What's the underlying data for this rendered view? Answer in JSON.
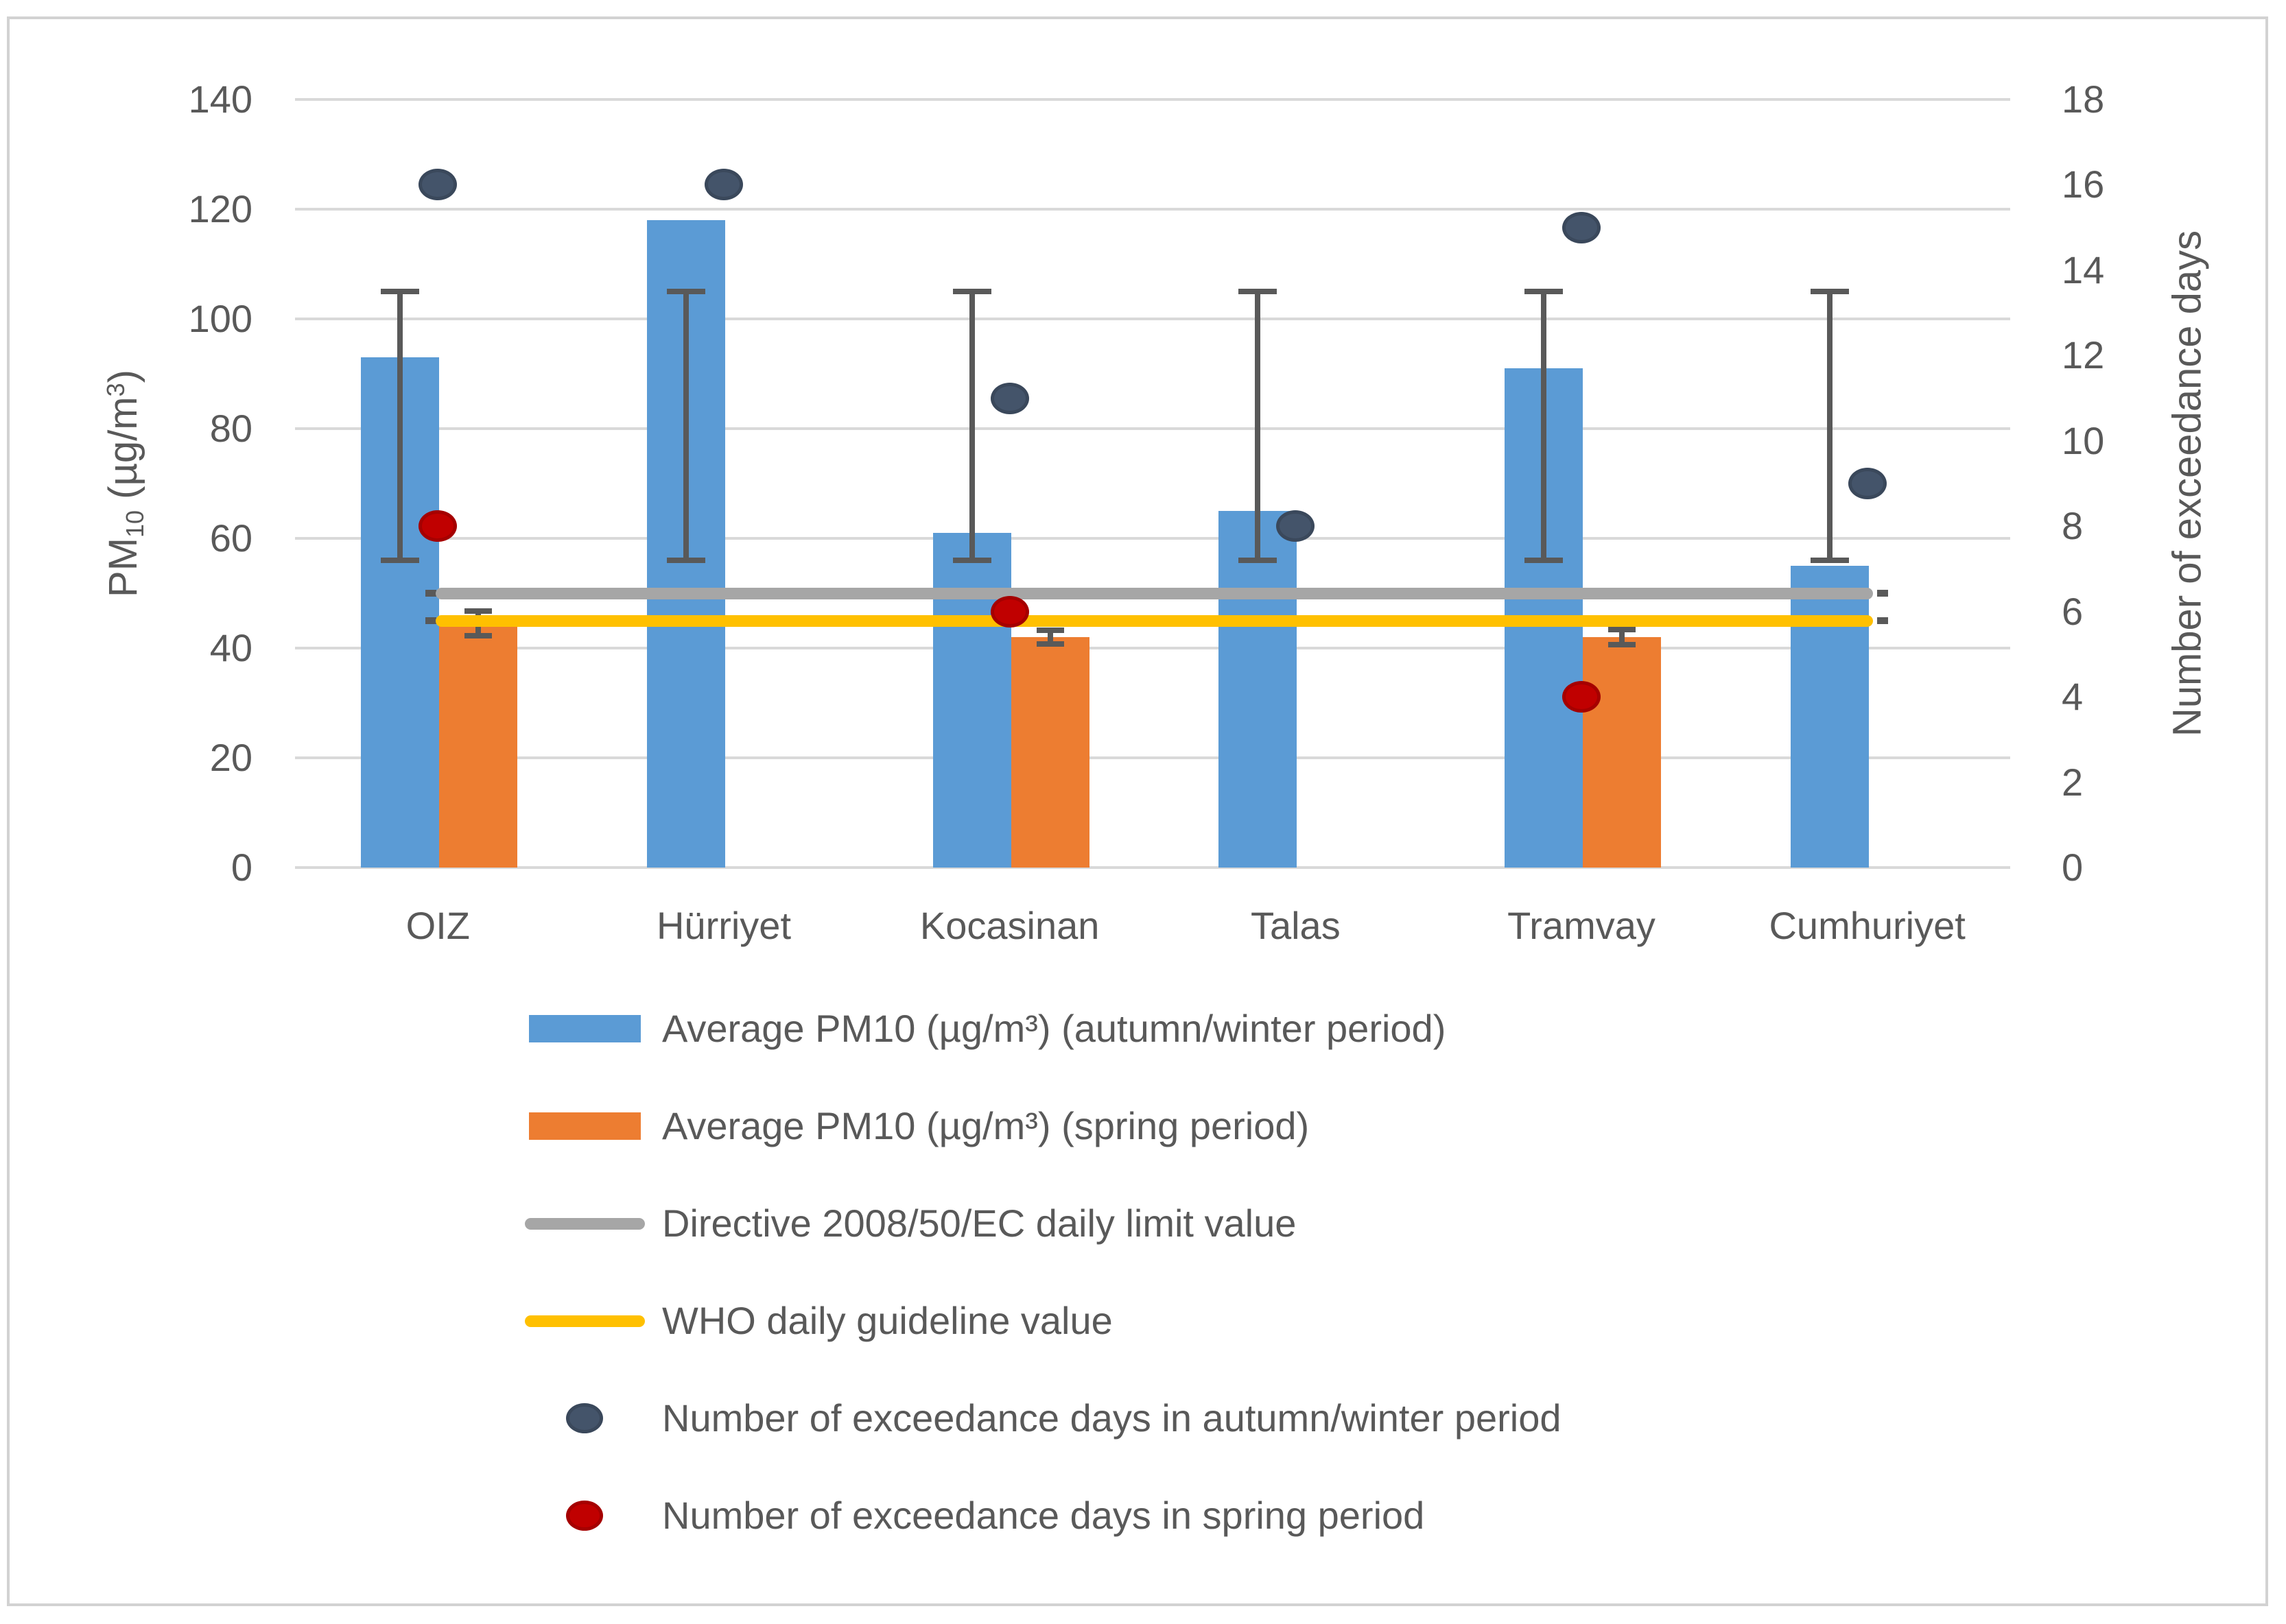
{
  "figure": {
    "background": "#FFFFFF",
    "border_color": "#D2D2D2",
    "text_color": "#595959",
    "gridline_color": "#D9D9D9",
    "error_bar_color": "#595959"
  },
  "chart_data": {
    "type": "combo",
    "subtypes": [
      "bar",
      "line",
      "scatter"
    ],
    "categories": [
      "OIZ",
      "Hürriyet",
      "Kocasinan",
      "Talas",
      "Tramvay",
      "Cumhuriyet"
    ],
    "left_axis": {
      "title": "PM10 (µg/m³)",
      "title_parts": {
        "prefix": "PM",
        "sub": "10",
        "mid": " (µg/m",
        "sup": "3",
        "suffix": ")"
      },
      "min": 0,
      "max": 140,
      "step": 20,
      "ticks": [
        "0",
        "20",
        "40",
        "60",
        "80",
        "100",
        "120",
        "140"
      ]
    },
    "right_axis": {
      "title": "Number of exceedance days",
      "min": 0,
      "max": 18,
      "step": 2,
      "ticks": [
        "0",
        "2",
        "4",
        "6",
        "8",
        "10",
        "12",
        "14",
        "16",
        "18"
      ]
    },
    "grid": true,
    "legend_position": "bottom",
    "series": [
      {
        "id": "pm10_autumn_winter",
        "name": "Average PM10 (µg/m³) (autumn/winter period)",
        "type": "bar",
        "axis": "left",
        "color": "#5B9BD5",
        "values": [
          93,
          118,
          61,
          65,
          91,
          55
        ],
        "error_bars": [
          {
            "low": 56,
            "high": 105
          },
          {
            "low": 56,
            "high": 105
          },
          {
            "low": 56,
            "high": 105
          },
          {
            "low": 56,
            "high": 105
          },
          {
            "low": 56,
            "high": 105
          },
          {
            "low": 56,
            "high": 105
          }
        ]
      },
      {
        "id": "pm10_spring",
        "name": "Average PM10 (µg/m³) (spring period)",
        "type": "bar",
        "axis": "left",
        "color": "#ED7D31",
        "values": [
          44.5,
          null,
          42,
          null,
          42,
          null
        ],
        "error_bars": [
          {
            "low": 42.3,
            "high": 46.7
          },
          null,
          {
            "low": 40.7,
            "high": 43.3
          },
          null,
          {
            "low": 40.6,
            "high": 43.4
          },
          null
        ]
      },
      {
        "id": "directive_limit",
        "name": "Directive 2008/50/EC daily limit value",
        "type": "line",
        "axis": "left",
        "color": "#A6A6A6",
        "value": 50
      },
      {
        "id": "who_guideline",
        "name": "WHO daily guideline value",
        "type": "line",
        "axis": "left",
        "color": "#FFC000",
        "value": 45
      },
      {
        "id": "exceed_autumn_winter",
        "name": "Number of exceedance days in autumn/winter period",
        "type": "scatter",
        "axis": "right",
        "color": "#44546A",
        "values": [
          16,
          16,
          11,
          8,
          15,
          9
        ]
      },
      {
        "id": "exceed_spring",
        "name": "Number of exceedance days in spring period",
        "type": "scatter",
        "axis": "right",
        "color": "#C00000",
        "values": [
          8,
          null,
          6,
          null,
          4,
          null
        ]
      }
    ]
  }
}
